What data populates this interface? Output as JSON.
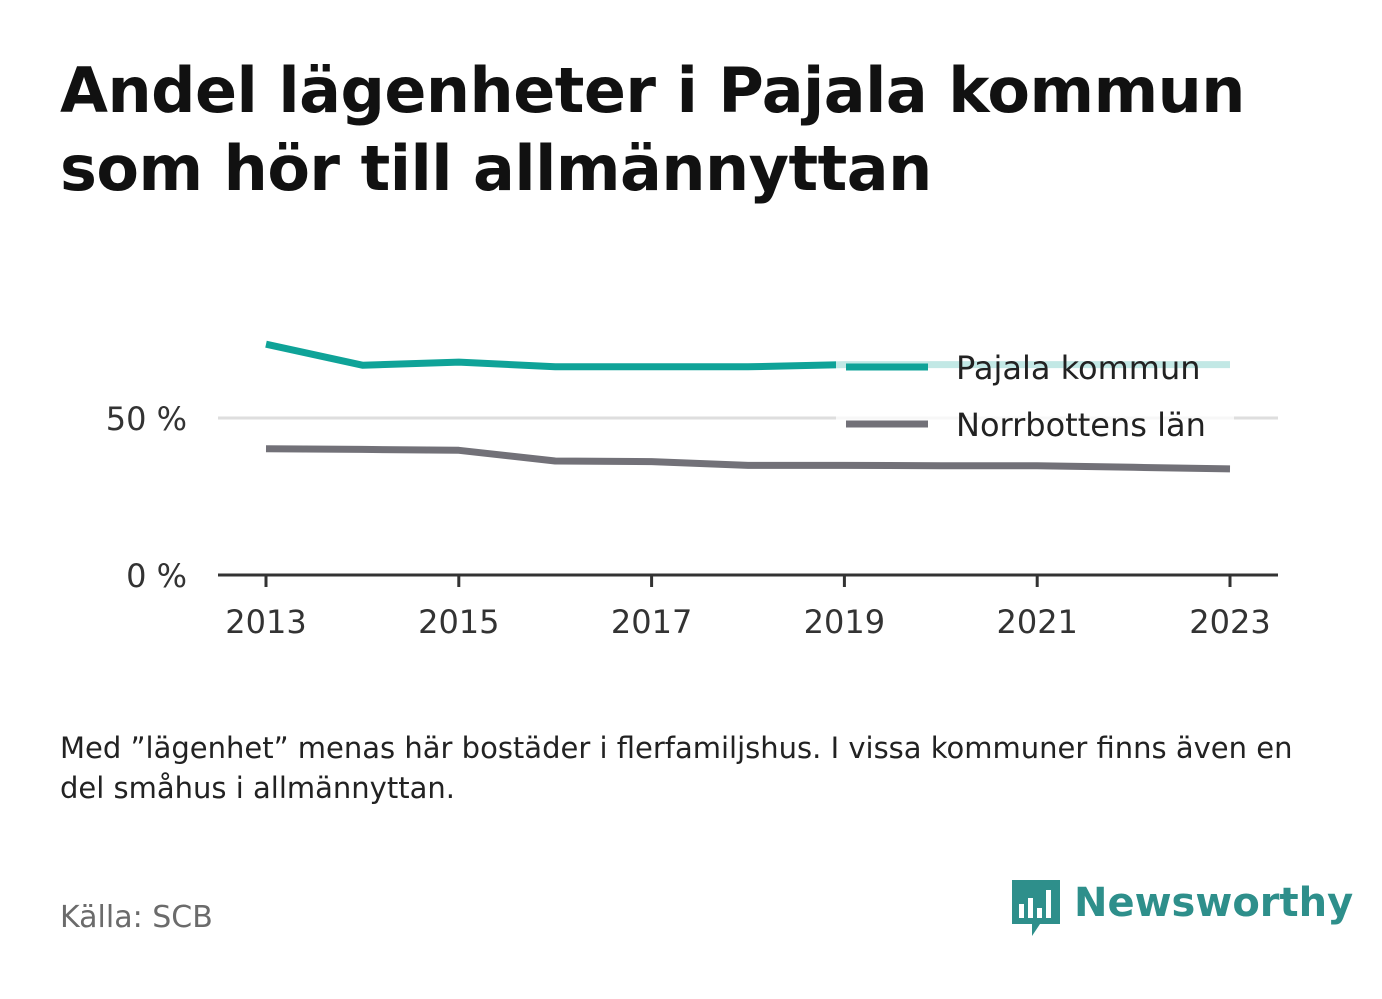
{
  "title": "Andel lägenheter i Pajala kommun som hör till allmännyttan",
  "note": "Med ”lägenhet” menas här bostäder i flerfamiljshus. I vissa kommuner finns även en del småhus i allmännyttan.",
  "source": "Källa: SCB",
  "logo": {
    "text": "Newsworthy",
    "icon": "bar-chart-speech-bubble-icon",
    "color": "#2e8f8b"
  },
  "chart_data": {
    "type": "line",
    "x": [
      2013,
      2014,
      2015,
      2016,
      2017,
      2018,
      2019,
      2020,
      2021,
      2022,
      2023
    ],
    "x_ticks": [
      2013,
      2015,
      2017,
      2019,
      2021,
      2023
    ],
    "x_tick_labels": [
      "2013",
      "2015",
      "2017",
      "2019",
      "2021",
      "2023"
    ],
    "y_ticks": [
      0,
      50
    ],
    "y_tick_labels": [
      "0 %",
      "50 %"
    ],
    "ylim": [
      0,
      85
    ],
    "grid": true,
    "legend_position": "top-right",
    "series": [
      {
        "name": "Pajala kommun",
        "color": "#0fa398",
        "values": [
          73.5,
          66.8,
          67.8,
          66.3,
          66.3,
          66.3,
          67.0,
          67.0,
          67.0,
          67.0,
          67.0
        ]
      },
      {
        "name": "Norrbottens län",
        "color": "#727178",
        "values": [
          40.2,
          40.0,
          39.7,
          36.3,
          36.1,
          34.9,
          34.9,
          34.8,
          34.8,
          34.3,
          33.8
        ]
      }
    ]
  }
}
